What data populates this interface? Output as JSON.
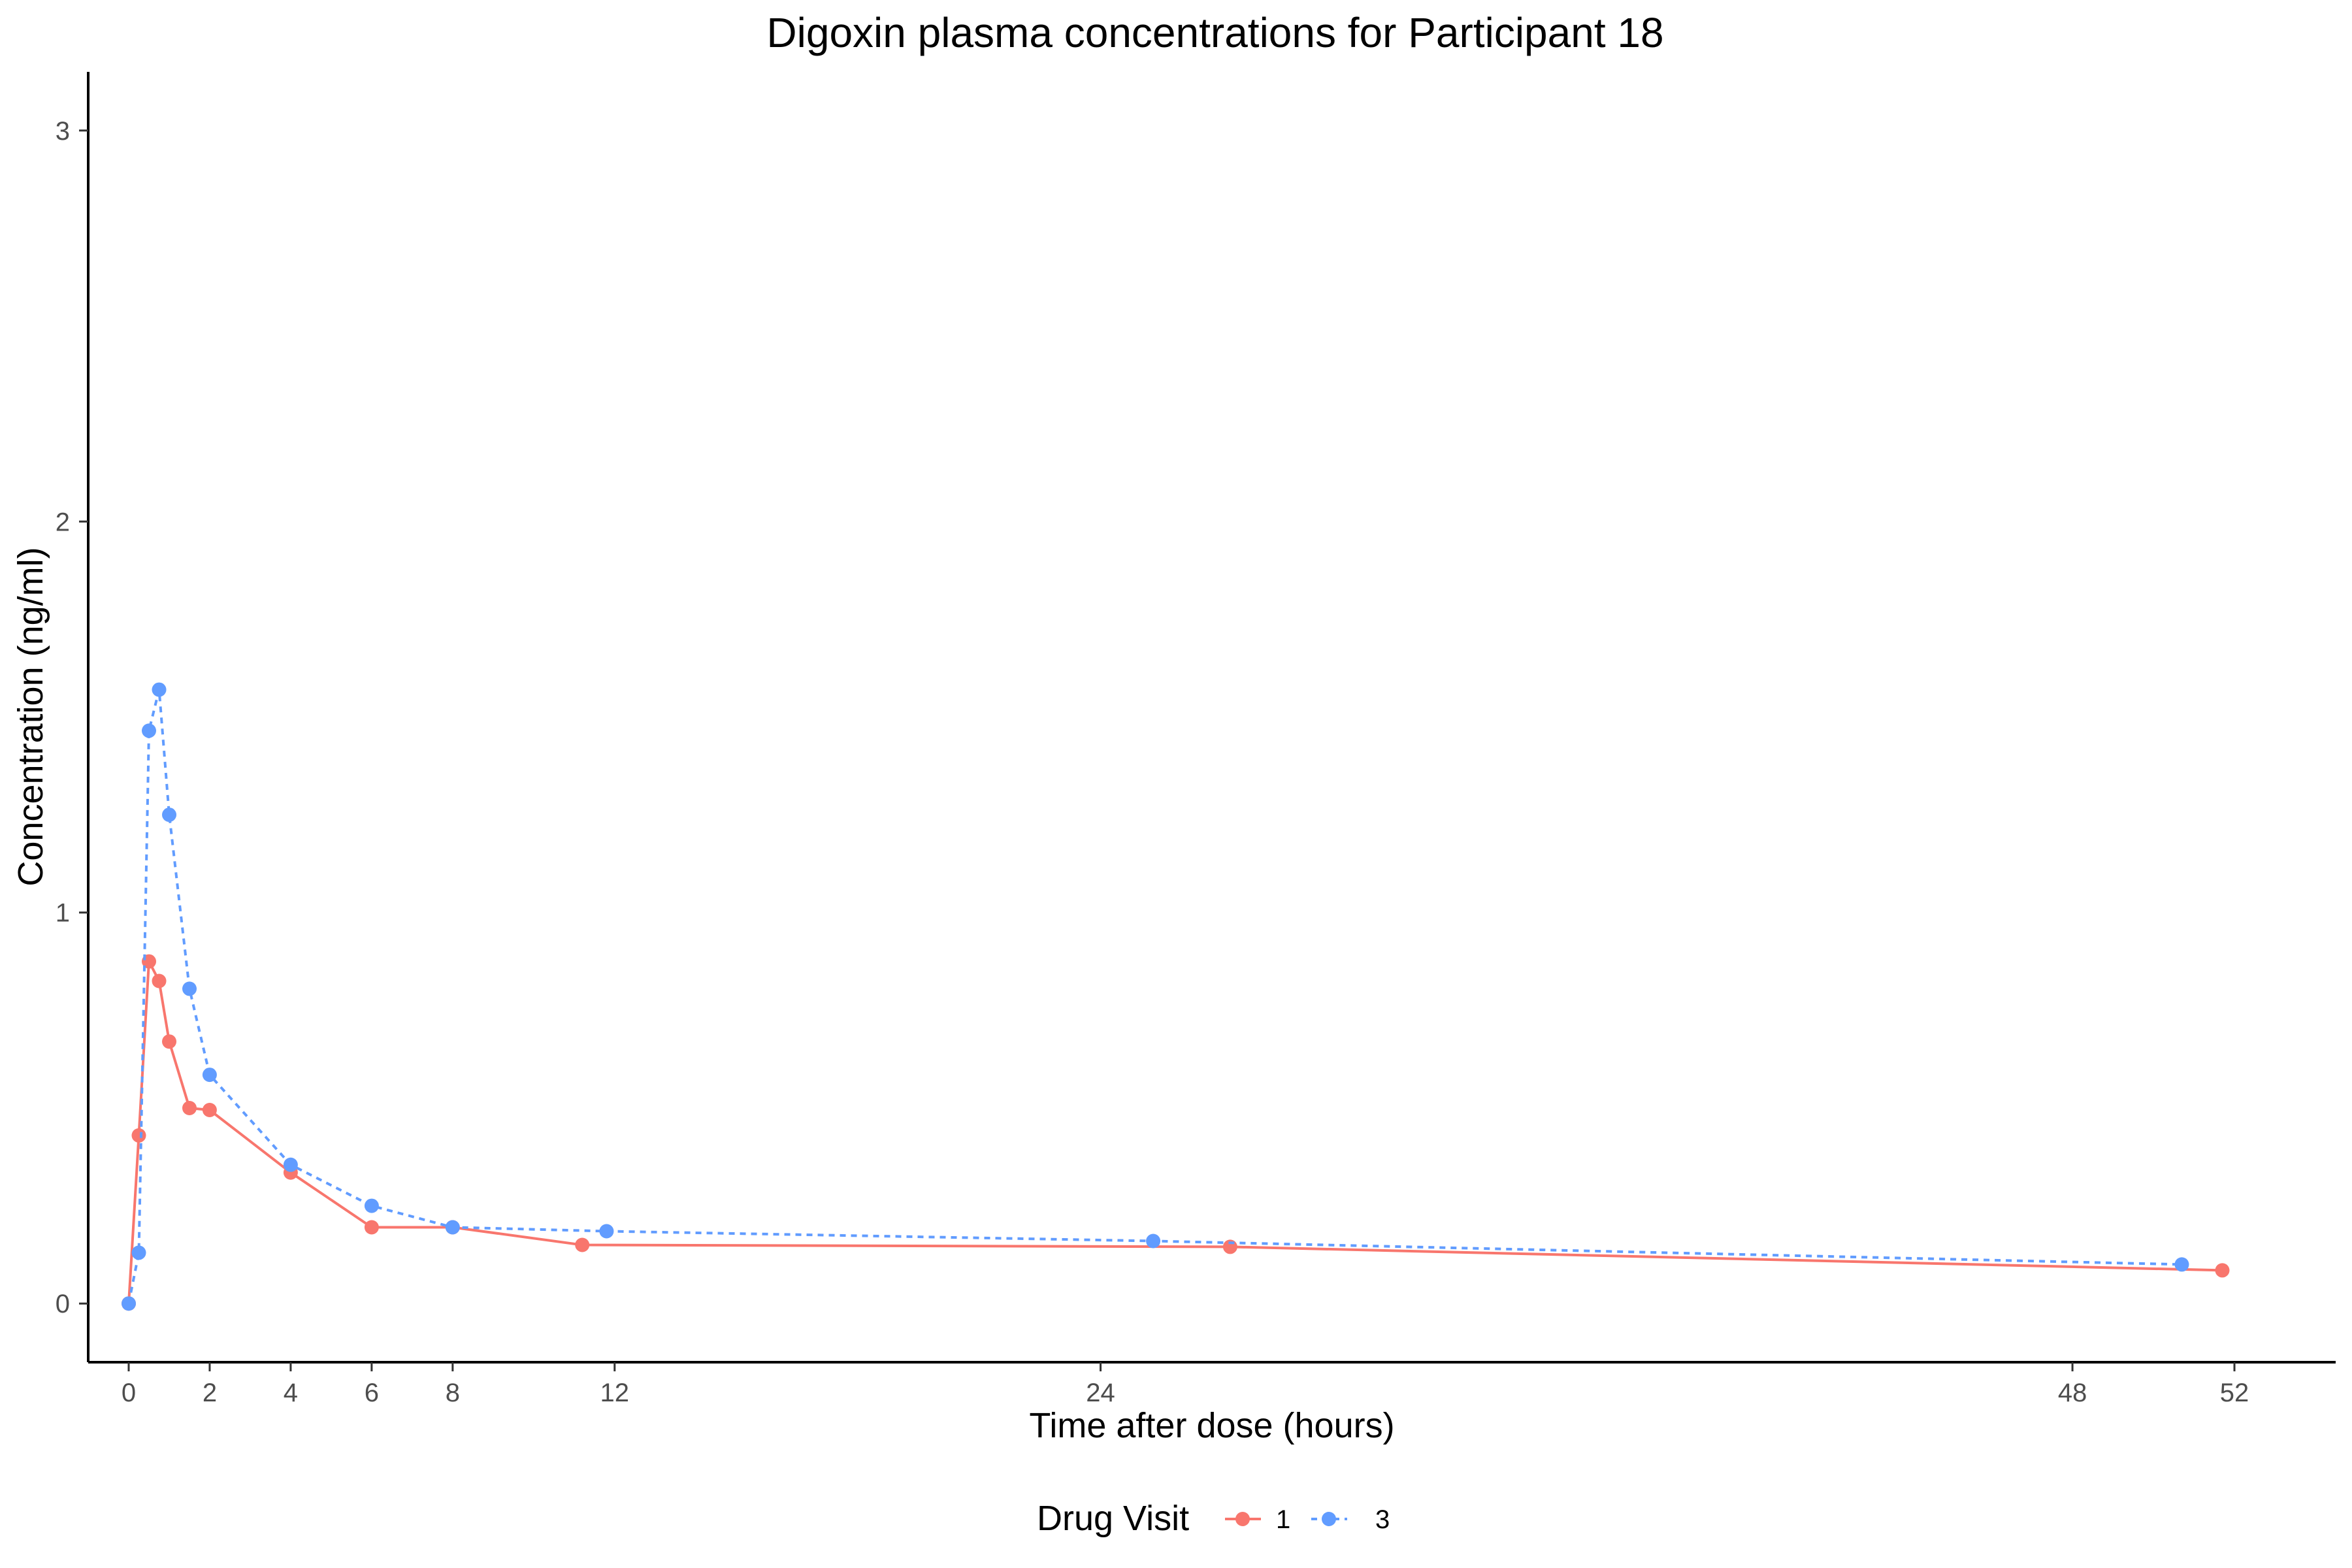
{
  "chart_data": {
    "type": "line",
    "title": "Digoxin plasma concentrations for Participant 18",
    "xlabel": "Time after dose (hours)",
    "ylabel": "Concentration (ng/ml)",
    "xlim": [
      -1,
      54.5
    ],
    "ylim": [
      -0.15,
      3.15
    ],
    "x_ticks": [
      0,
      2,
      4,
      6,
      8,
      12,
      24,
      48,
      52
    ],
    "y_ticks": [
      0,
      1,
      2,
      3
    ],
    "grid": false,
    "legend": {
      "title": "Drug Visit",
      "position": "bottom"
    },
    "series": [
      {
        "name": "1",
        "color": "#F8766D",
        "line_style": "solid",
        "x": [
          0,
          0.25,
          0.5,
          0.75,
          1,
          1.5,
          2,
          4,
          6,
          8,
          11.2,
          27.2,
          51.7
        ],
        "y": [
          0.0,
          0.43,
          0.875,
          0.825,
          0.67,
          0.5,
          0.495,
          0.335,
          0.195,
          0.195,
          0.15,
          0.145,
          0.085
        ]
      },
      {
        "name": "3",
        "color": "#619CFF",
        "line_style": "dashed",
        "x": [
          0,
          0.25,
          0.5,
          0.75,
          1,
          1.5,
          2,
          4,
          6,
          8,
          11.8,
          25.3,
          50.7
        ],
        "y": [
          0.0,
          0.13,
          1.465,
          1.57,
          1.25,
          0.805,
          0.585,
          0.355,
          0.25,
          0.195,
          0.185,
          0.16,
          0.1
        ]
      }
    ]
  }
}
